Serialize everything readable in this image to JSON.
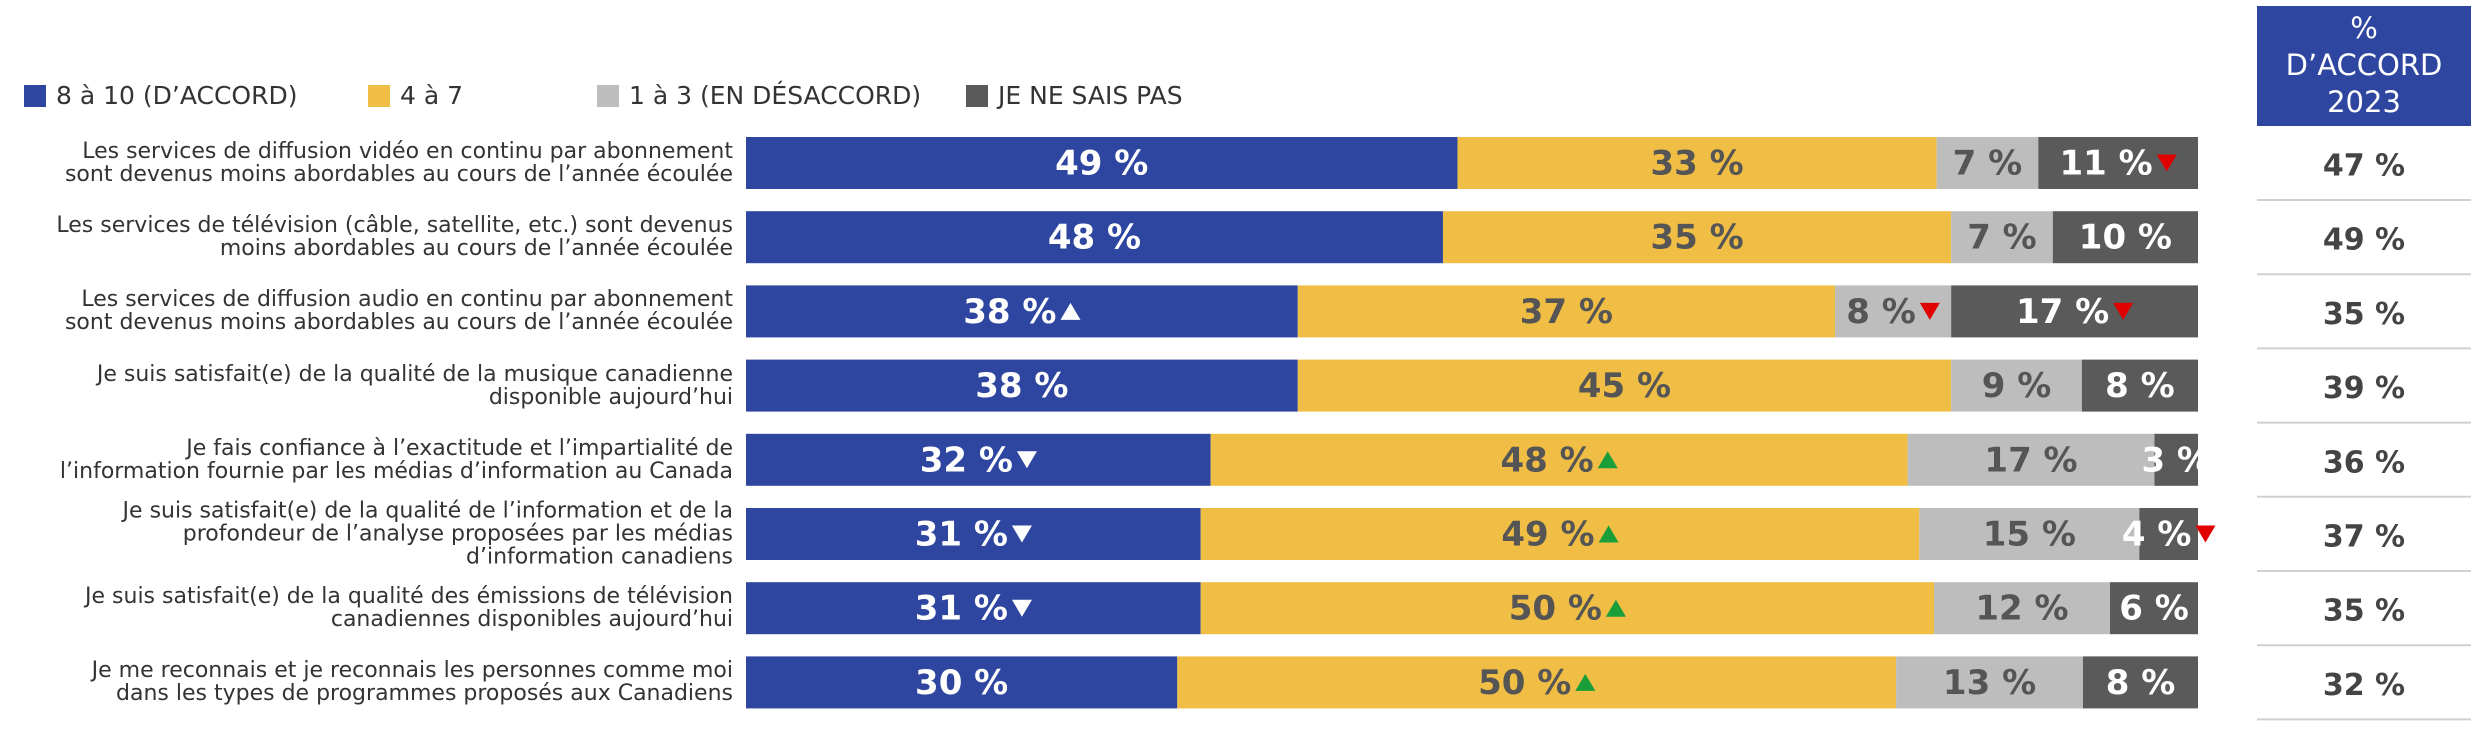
{
  "chart_data": {
    "type": "stacked_bar_h",
    "categories": [
      "Les services de diffusion vidéo en continu par abonnement\nsont devenus moins abordables au cours de l’année écoulée",
      "Les services de télévision (câble, satellite, etc.) sont devenus\nmoins abordables au cours de l’année écoulée",
      "Les services de diffusion audio en continu par abonnement\nsont devenus moins abordables au cours de l’année écoulée",
      "Je suis satisfait(e) de la qualité de la musique canadienne\ndisponible aujourd’hui",
      "Je fais confiance à l’exactitude et l’impartialité de\nl’information fournie par les médias d’information au Canada",
      "Je suis satisfait(e) de la qualité de l’information et de la\nprofondeur de l’analyse proposées par les médias\nd’information canadiens",
      "Je suis satisfait(e) de la qualité des émissions de télévision\ncanadiennes disponibles aujourd’hui",
      "Je me reconnais et je reconnais les personnes comme moi\ndans les types de programmes proposés aux Canadiens"
    ],
    "series": [
      {
        "name": "8 à 10 (D’ACCORD)",
        "color": "#2e46a0",
        "label_color": "#ffffff",
        "trend_color": "#ffffff",
        "values": [
          49,
          48,
          38,
          38,
          32,
          31,
          31,
          30
        ],
        "value_labels": [
          "49 %",
          "48 %",
          "38 %",
          "38 %",
          "32 %",
          "31 %",
          "31 %",
          "30 %"
        ],
        "trends": [
          null,
          null,
          "up",
          null,
          "down",
          "down",
          "down",
          null
        ]
      },
      {
        "name": "4 à 7",
        "color": "#f0bd45",
        "label_color": "#555555",
        "trend_color": "#1a9e3a",
        "values": [
          33,
          35,
          37,
          45,
          48,
          49,
          50,
          50
        ],
        "value_labels": [
          "33 %",
          "35 %",
          "37 %",
          "45 %",
          "48 %",
          "49 %",
          "50 %",
          "50 %"
        ],
        "trends": [
          null,
          null,
          null,
          null,
          "up",
          "up",
          "up",
          "up"
        ]
      },
      {
        "name": "1 à 3 (EN DÉSACCORD)",
        "color": "#bdbdbd",
        "label_color": "#555555",
        "trend_color": "#e00000",
        "values": [
          7,
          7,
          8,
          9,
          17,
          15,
          12,
          13
        ],
        "value_labels": [
          "7 %",
          "7 %",
          "8 %",
          "9 %",
          "17 %",
          "15 %",
          "12 %",
          "13 %"
        ],
        "trends": [
          null,
          null,
          "down",
          null,
          null,
          null,
          null,
          null
        ]
      },
      {
        "name": "JE NE SAIS PAS",
        "color": "#5a5a5a",
        "label_color": "#ffffff",
        "trend_color": "#e00000",
        "values": [
          11,
          10,
          17,
          8,
          3,
          4,
          6,
          8
        ],
        "value_labels": [
          "11 %",
          "10 %",
          "17 %",
          "8 %",
          "3 %",
          "4 %",
          "6 %",
          "8 %"
        ],
        "trends": [
          "down",
          null,
          "down",
          null,
          null,
          "down",
          null,
          null
        ]
      }
    ],
    "agree_2023": {
      "header": [
        "%",
        "D’ACCORD",
        "2023"
      ],
      "color": "#2e46a0",
      "values": [
        47,
        49,
        35,
        39,
        36,
        37,
        35,
        32
      ],
      "value_labels": [
        "47 %",
        "49 %",
        "35 %",
        "39 %",
        "36 %",
        "37 %",
        "35 %",
        "32 %"
      ]
    }
  }
}
